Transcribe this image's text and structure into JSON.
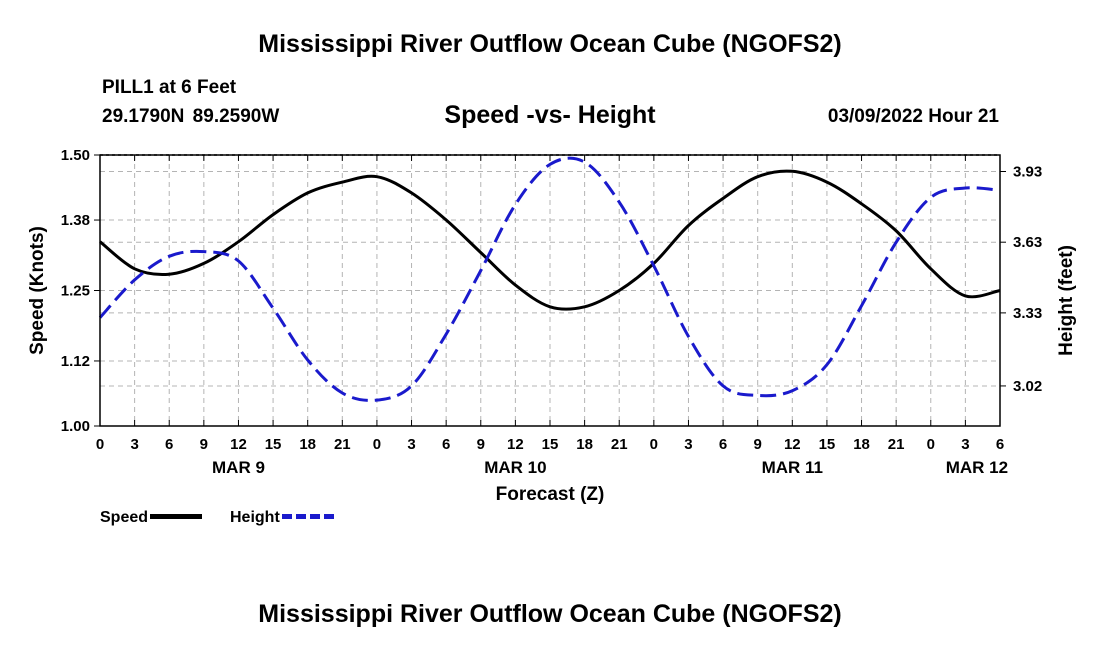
{
  "page_title": "Mississippi River Outflow Ocean Cube (NGOFS2)",
  "station": {
    "name": "PILL1 at 6 Feet",
    "coords": "29.1790N 89.2590W"
  },
  "chart_subtitle": "Speed -vs- Height",
  "datetime": "03/09/2022 Hour 21",
  "footer_title": "Mississippi River Outflow Ocean Cube (NGOFS2)",
  "legend": {
    "speed_label": "Speed",
    "height_label": "Height"
  },
  "colors": {
    "speed": "#000000",
    "height": "#1a1acc",
    "grid": "#b4b4b4"
  },
  "chart_data": {
    "type": "line",
    "title": "Speed -vs- Height",
    "xlabel": "Forecast (Z)",
    "ylabel": "Speed (Knots)",
    "y2label": "Height (feet)",
    "x_unit": "hours since 2022-03-09 00Z",
    "xlim": [
      0,
      78
    ],
    "ylim": [
      1.0,
      1.5
    ],
    "y2lim": [
      2.85,
      4.0
    ],
    "x_ticks": [
      0,
      3,
      6,
      9,
      12,
      15,
      18,
      21,
      24,
      27,
      30,
      33,
      36,
      39,
      42,
      45,
      48,
      51,
      54,
      57,
      60,
      63,
      66,
      69,
      72,
      75,
      78
    ],
    "x_tick_labels": [
      "0",
      "3",
      "6",
      "9",
      "12",
      "15",
      "18",
      "21",
      "0",
      "3",
      "6",
      "9",
      "12",
      "15",
      "18",
      "21",
      "0",
      "3",
      "6",
      "9",
      "12",
      "15",
      "18",
      "21",
      "0",
      "3",
      "6"
    ],
    "day_labels": [
      {
        "x": 12,
        "label": "MAR 9"
      },
      {
        "x": 36,
        "label": "MAR 10"
      },
      {
        "x": 60,
        "label": "MAR 11"
      },
      {
        "x": 76,
        "label": "MAR 12"
      }
    ],
    "y_ticks": [
      1.0,
      1.12,
      1.25,
      1.38,
      1.5
    ],
    "y_tick_labels": [
      "1.00",
      "1.12",
      "1.25",
      "1.38",
      "1.50"
    ],
    "y2_ticks": [
      3.02,
      3.33,
      3.63,
      3.93
    ],
    "y2_tick_labels": [
      "3.02",
      "3.33",
      "3.63",
      "3.93"
    ],
    "grid": true,
    "series": [
      {
        "name": "Speed",
        "axis": "left",
        "style": "solid",
        "x": [
          0,
          3,
          6,
          9,
          12,
          15,
          18,
          21,
          24,
          27,
          30,
          33,
          36,
          39,
          42,
          45,
          48,
          51,
          54,
          57,
          60,
          63,
          66,
          69,
          72,
          75,
          78
        ],
        "values": [
          1.34,
          1.29,
          1.28,
          1.3,
          1.34,
          1.39,
          1.43,
          1.45,
          1.46,
          1.43,
          1.38,
          1.32,
          1.26,
          1.22,
          1.22,
          1.25,
          1.3,
          1.37,
          1.42,
          1.46,
          1.47,
          1.45,
          1.41,
          1.36,
          1.29,
          1.24,
          1.25
        ]
      },
      {
        "name": "Height",
        "axis": "right",
        "style": "dashed",
        "x": [
          0,
          3,
          6,
          9,
          12,
          15,
          18,
          21,
          24,
          27,
          30,
          33,
          36,
          39,
          42,
          45,
          48,
          51,
          54,
          57,
          60,
          63,
          66,
          69,
          72,
          75,
          78
        ],
        "values": [
          3.31,
          3.47,
          3.57,
          3.59,
          3.55,
          3.35,
          3.13,
          2.99,
          2.96,
          3.02,
          3.24,
          3.51,
          3.79,
          3.96,
          3.97,
          3.8,
          3.53,
          3.23,
          3.02,
          2.98,
          3.0,
          3.11,
          3.36,
          3.63,
          3.82,
          3.86,
          3.85
        ]
      }
    ]
  }
}
